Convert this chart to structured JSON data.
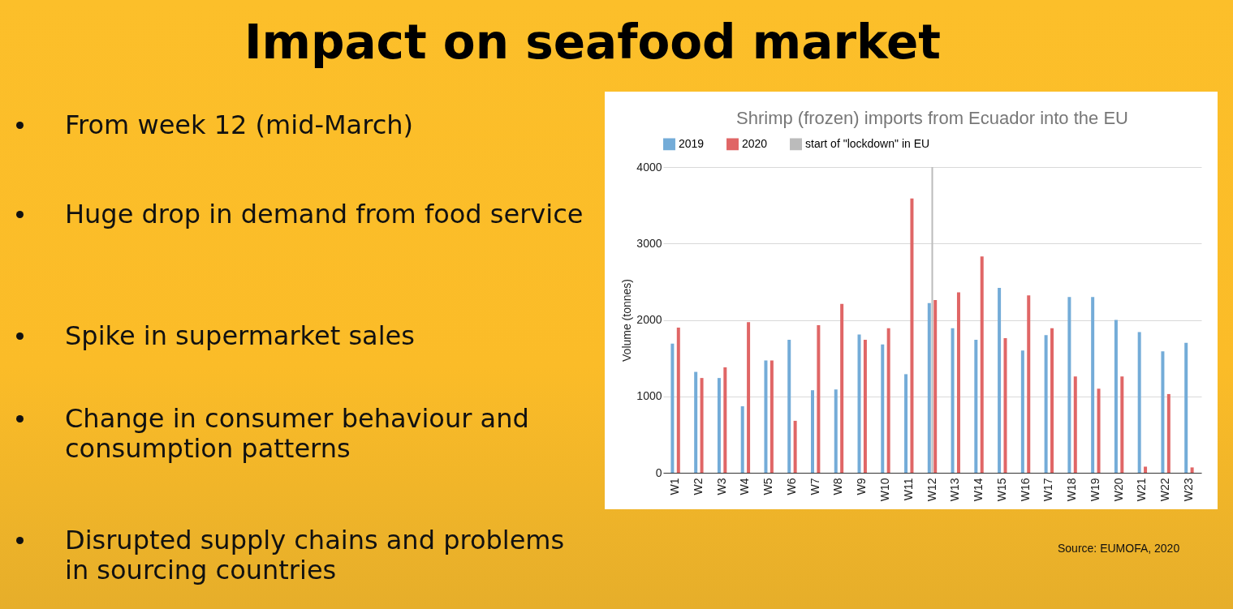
{
  "chart_data": {
    "type": "bar",
    "title": "Impact on seafood market",
    "subtitle": "Shrimp (frozen) imports from Ecuador into the EU",
    "ylabel": "Volume (tonnes)",
    "categories": [
      "W1",
      "W2",
      "W3",
      "W4",
      "W5",
      "W6",
      "W7",
      "W8",
      "W9",
      "W10",
      "W11",
      "W12",
      "W13",
      "W14",
      "W15",
      "W16",
      "W17",
      "W18",
      "W19",
      "W20",
      "W21",
      "W22",
      "W23"
    ],
    "series": [
      {
        "name": "2019",
        "color": "#74acd8",
        "values": [
          1690,
          1320,
          1240,
          870,
          1470,
          1740,
          1080,
          1090,
          1810,
          1680,
          1290,
          2220,
          1890,
          1740,
          2420,
          1600,
          1800,
          2300,
          2300,
          2000,
          1840,
          1590,
          1700
        ]
      },
      {
        "name": "2020",
        "color": "#e06666",
        "values": [
          1900,
          1240,
          1380,
          1970,
          1470,
          680,
          1930,
          2210,
          1740,
          1890,
          3590,
          2260,
          2360,
          2830,
          1760,
          2320,
          1890,
          1260,
          1100,
          1260,
          80,
          1030,
          70
        ]
      }
    ],
    "ref_lines": [
      {
        "axis": "x",
        "value": "W12",
        "label": "start of \"lockdown\" in EU",
        "color": "#bbbbbb"
      }
    ],
    "ylim": [
      0,
      4000
    ],
    "yticks": [
      0,
      1000,
      2000,
      3000,
      4000
    ],
    "grid": "y",
    "legend": "top",
    "annotations": [
      "From week 12 (mid-March)",
      "Huge drop in demand from food service",
      "Spike in supermarket sales",
      "Change in consumer behaviour and consumption patterns",
      "Disrupted supply chains and problems in sourcing countries",
      "Source: EUMOFA, 2020"
    ]
  }
}
